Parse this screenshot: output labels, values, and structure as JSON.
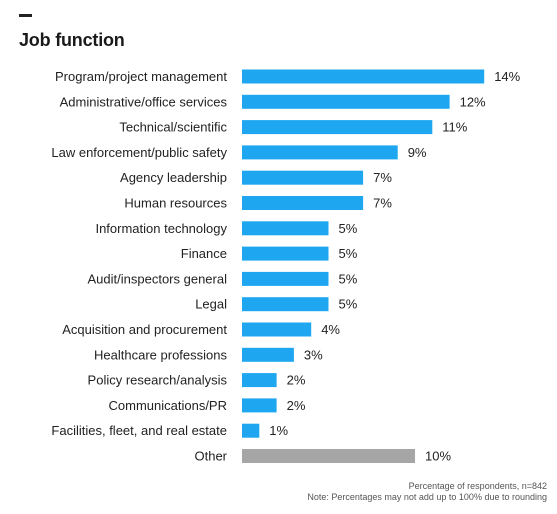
{
  "title": "Job function",
  "colors": {
    "bar": "#1ea7f0",
    "other_bar": "#a6a6a6"
  },
  "chart_data": {
    "type": "bar",
    "orientation": "horizontal",
    "title": "Job function",
    "xlabel": "",
    "ylabel": "",
    "unit": "%",
    "grid": false,
    "xlim": [
      0,
      14
    ],
    "categories": [
      "Program/project management",
      "Administrative/office services",
      "Technical/scientific",
      "Law enforcement/public safety",
      "Agency leadership",
      "Human resources",
      "Information technology",
      "Finance",
      "Audit/inspectors general",
      "Legal",
      "Acquisition and procurement",
      "Healthcare professions",
      "Policy research/analysis",
      "Communications/PR",
      "Facilities, fleet, and real estate",
      "Other"
    ],
    "values": [
      14,
      12,
      11,
      9,
      7,
      7,
      5,
      5,
      5,
      5,
      4,
      3,
      2,
      2,
      1,
      10
    ],
    "labels": [
      "14%",
      "12%",
      "11%",
      "9%",
      "7%",
      "7%",
      "5%",
      "5%",
      "5%",
      "5%",
      "4%",
      "3%",
      "2%",
      "2%",
      "1%",
      "10%"
    ],
    "highlight": "Other"
  },
  "footnotes": {
    "line1": "Percentage of respondents, n=842",
    "line2": "Note: Percentages may not add up to 100% due to rounding"
  }
}
